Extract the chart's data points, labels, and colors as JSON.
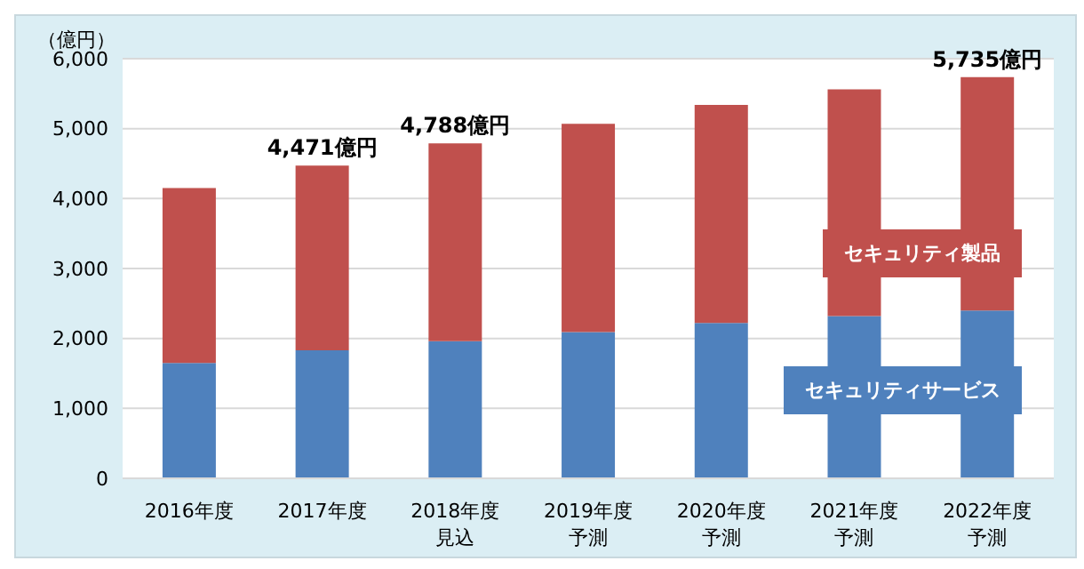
{
  "chart_data": {
    "type": "bar",
    "stacked": true,
    "ylabel": "（億円）",
    "categories": [
      "2016年度",
      "2017年度",
      "2018年度見込",
      "2019年度予測",
      "2020年度予測",
      "2021年度予測",
      "2022年度予測"
    ],
    "series": [
      {
        "name": "セキュリティサービス",
        "color": "#4f81bd",
        "values": [
          1650,
          1830,
          1960,
          2090,
          2220,
          2320,
          2400
        ]
      },
      {
        "name": "セキュリティ製品",
        "color": "#c0504d",
        "values": [
          2500,
          2641,
          2828,
          2980,
          3120,
          3240,
          3335
        ]
      }
    ],
    "totals": [
      null,
      "4,471億円",
      "4,788億円",
      null,
      null,
      null,
      "5,735億円"
    ],
    "ylim": [
      0,
      6000
    ],
    "yticks": [
      {
        "value": 0,
        "label": "0"
      },
      {
        "value": 1000,
        "label": "1,000"
      },
      {
        "value": 2000,
        "label": "2,000"
      },
      {
        "value": 3000,
        "label": "3,000"
      },
      {
        "value": 4000,
        "label": "4,000"
      },
      {
        "value": 5000,
        "label": "5,000"
      },
      {
        "value": 6000,
        "label": "6,000"
      }
    ],
    "grid": "y",
    "legend": "right"
  }
}
